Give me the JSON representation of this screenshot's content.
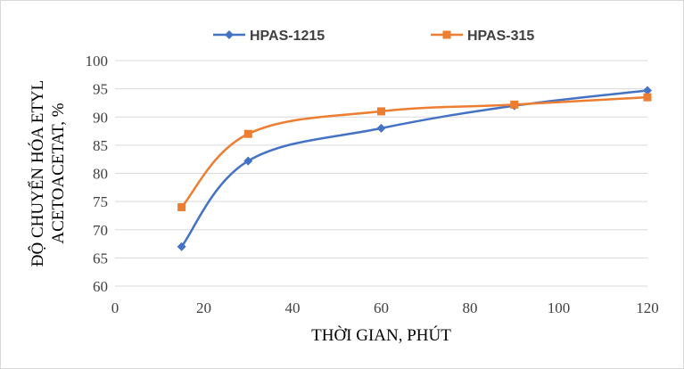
{
  "chart_data": {
    "type": "line",
    "xlabel": "THỜI GIAN, PHÚT",
    "ylabel": [
      "ĐỘ CHUYỂN HÓA ETYL",
      "ACETOACETAT, %"
    ],
    "xlim": [
      0,
      120
    ],
    "ylim": [
      60,
      100
    ],
    "xticks": [
      0,
      20,
      40,
      60,
      80,
      100,
      120
    ],
    "yticks": [
      60,
      65,
      70,
      75,
      80,
      85,
      90,
      95,
      100
    ],
    "grid": "horizontal",
    "legend_position": "top",
    "smooth": true,
    "series": [
      {
        "name": "HPAS-1215",
        "color": "#4472C4",
        "marker": "diamond",
        "x": [
          15,
          30,
          60,
          90,
          120
        ],
        "y": [
          67.0,
          82.2,
          88.0,
          92.0,
          94.7
        ]
      },
      {
        "name": "HPAS-315",
        "color": "#ED7D31",
        "marker": "square",
        "x": [
          15,
          30,
          60,
          90,
          120
        ],
        "y": [
          74.0,
          87.0,
          91.0,
          92.2,
          93.5
        ]
      }
    ]
  }
}
